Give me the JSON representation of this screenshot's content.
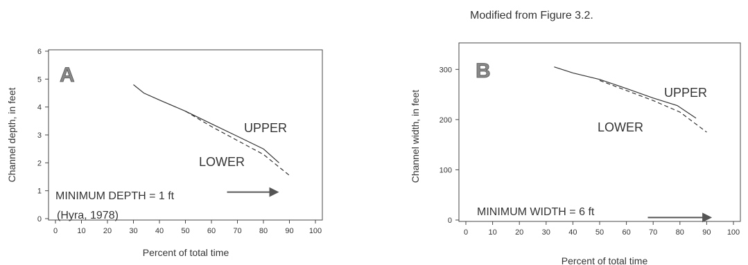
{
  "caption": "Modified from Figure 3.2.",
  "colors": {
    "axis": "#444444",
    "series": "#333333",
    "arrow": "#555555",
    "letter_fill": "#888888"
  },
  "chart_data": [
    {
      "type": "line",
      "panel_label": "A",
      "xlabel": "Percent of total time",
      "ylabel": "Channel depth, in feet",
      "xlim": [
        0,
        100
      ],
      "ylim": [
        0,
        6
      ],
      "xticks": [
        0,
        10,
        20,
        30,
        40,
        50,
        60,
        70,
        80,
        90,
        100
      ],
      "yticks": [
        0,
        1,
        2,
        3,
        4,
        5,
        6
      ],
      "grid": false,
      "series": [
        {
          "name": "UPPER",
          "style": "solid",
          "x": [
            30,
            34,
            40,
            50,
            60,
            70,
            80,
            86
          ],
          "y": [
            4.8,
            4.5,
            4.25,
            3.85,
            3.4,
            2.95,
            2.5,
            2.0
          ]
        },
        {
          "name": "LOWER",
          "style": "dashed",
          "x": [
            50,
            60,
            70,
            80,
            86,
            90
          ],
          "y": [
            3.85,
            3.3,
            2.8,
            2.3,
            1.85,
            1.55
          ]
        }
      ],
      "annotations": [
        {
          "text": "MINIMUM DEPTH = 1 ft",
          "text2": "(Hyra, 1978)",
          "arrow_from": [
            66,
            0.95
          ],
          "arrow_to": [
            86,
            0.95
          ]
        }
      ]
    },
    {
      "type": "line",
      "panel_label": "B",
      "xlabel": "Percent of total time",
      "ylabel": "Channel width, in feet",
      "xlim": [
        0,
        100
      ],
      "ylim": [
        0,
        350
      ],
      "xticks": [
        0,
        10,
        20,
        30,
        40,
        50,
        60,
        70,
        80,
        90,
        100
      ],
      "yticks": [
        0,
        100,
        200,
        300
      ],
      "grid": false,
      "series": [
        {
          "name": "UPPER",
          "style": "solid",
          "x": [
            33,
            40,
            50,
            60,
            70,
            79,
            86
          ],
          "y": [
            305,
            293,
            280,
            262,
            243,
            228,
            203
          ]
        },
        {
          "name": "LOWER",
          "style": "dashed",
          "x": [
            50,
            60,
            70,
            80,
            90
          ],
          "y": [
            278,
            258,
            238,
            215,
            175
          ]
        }
      ],
      "annotations": [
        {
          "text": "MINIMUM WIDTH = 6 ft",
          "text2": "",
          "arrow_from": [
            68,
            5
          ],
          "arrow_to": [
            92,
            5
          ]
        }
      ]
    }
  ]
}
